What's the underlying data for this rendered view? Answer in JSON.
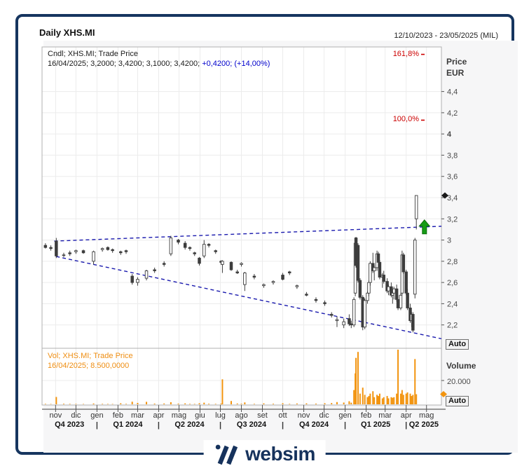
{
  "window": {
    "title": "Daily XHS.MI",
    "date_range": "12/10/2023 - 23/05/2025 (MIL)"
  },
  "price_panel": {
    "legend_line1": "Cndl; XHS.MI; Trade Price",
    "legend_line2_ohlc": "16/04/2025; 3,2000; 3,4200; 3,1000; 3,4200; ",
    "legend_line2_change": "+0,4200; (+14,00%)",
    "axis_title_line1": "Price",
    "axis_title_line2": "EUR",
    "auto_button": "Auto",
    "tick_labels": [
      "4,4",
      "4,2",
      "4",
      "3,8",
      "3,6",
      "3,4",
      "3,2",
      "3",
      "2,8",
      "2,6",
      "2,4",
      "2,2"
    ],
    "fib_levels": [
      {
        "label": "161,8%",
        "price": 4.75
      },
      {
        "label": "100,0%",
        "price": 4.13
      }
    ],
    "last_price_marker": 3.42
  },
  "volume_panel": {
    "legend_line1": "Vol; XHS.MI; Trade Price",
    "legend_line2": "16/04/2025; 8.500,0000",
    "axis_title": "Volume",
    "tick_label": "20.000",
    "tick_value": 20000,
    "auto_button": "Auto",
    "last_volume_marker": 8500
  },
  "x_axis": {
    "months": [
      {
        "label": "nov",
        "date": "2023-11-01"
      },
      {
        "label": "dic",
        "date": "2023-12-01"
      },
      {
        "label": "gen",
        "date": "2024-01-01"
      },
      {
        "label": "feb",
        "date": "2024-02-01"
      },
      {
        "label": "mar",
        "date": "2024-03-01"
      },
      {
        "label": "apr",
        "date": "2024-04-01"
      },
      {
        "label": "mag",
        "date": "2024-05-01"
      },
      {
        "label": "giu",
        "date": "2024-06-01"
      },
      {
        "label": "lug",
        "date": "2024-07-01"
      },
      {
        "label": "ago",
        "date": "2024-08-01"
      },
      {
        "label": "set",
        "date": "2024-09-01"
      },
      {
        "label": "ott",
        "date": "2024-10-01"
      },
      {
        "label": "nov",
        "date": "2024-11-01"
      },
      {
        "label": "dic",
        "date": "2024-12-01"
      },
      {
        "label": "gen",
        "date": "2025-01-01"
      },
      {
        "label": "feb",
        "date": "2025-02-01"
      },
      {
        "label": "mar",
        "date": "2025-03-01"
      },
      {
        "label": "apr",
        "date": "2025-04-01"
      },
      {
        "label": "mag",
        "date": "2025-05-01"
      }
    ],
    "quarters": [
      {
        "label": "Q4 2023",
        "start": "2023-10-12",
        "end": "2024-01-01"
      },
      {
        "label": "Q1 2024",
        "start": "2024-01-01",
        "end": "2024-04-01"
      },
      {
        "label": "Q2 2024",
        "start": "2024-04-01",
        "end": "2024-07-01"
      },
      {
        "label": "Q3 2024",
        "start": "2024-07-01",
        "end": "2024-10-01"
      },
      {
        "label": "Q4 2024",
        "start": "2024-10-01",
        "end": "2025-01-01"
      },
      {
        "label": "Q1 2025",
        "start": "2025-01-01",
        "end": "2025-04-01"
      },
      {
        "label": "Q2 2025",
        "start": "2025-04-01",
        "end": "2025-05-23"
      }
    ]
  },
  "chart_data": {
    "type": "candlestick",
    "x_domain": [
      "2023-10-12",
      "2025-05-23"
    ],
    "price_range": [
      1.98,
      4.82
    ],
    "volume_axis_max_shown": 20000,
    "grid": true,
    "columns": [
      "date",
      "open",
      "high",
      "low",
      "close",
      "volume"
    ],
    "candles": [
      [
        "2023-10-17",
        2.95,
        2.97,
        2.92,
        2.93,
        400
      ],
      [
        "2023-10-25",
        2.93,
        2.95,
        2.9,
        2.92,
        300
      ],
      [
        "2023-11-02",
        2.99,
        3.02,
        2.83,
        2.85,
        6200
      ],
      [
        "2023-11-13",
        2.86,
        2.88,
        2.84,
        2.86,
        500
      ],
      [
        "2023-11-22",
        2.88,
        2.9,
        2.85,
        2.87,
        400
      ],
      [
        "2023-12-01",
        2.89,
        2.91,
        2.87,
        2.9,
        350
      ],
      [
        "2023-12-12",
        2.9,
        2.91,
        2.87,
        2.88,
        300
      ],
      [
        "2023-12-27",
        2.8,
        2.9,
        2.77,
        2.89,
        700
      ],
      [
        "2024-01-09",
        2.91,
        2.93,
        2.89,
        2.92,
        400
      ],
      [
        "2024-01-17",
        2.93,
        2.94,
        2.9,
        2.91,
        350
      ],
      [
        "2024-01-24",
        2.91,
        2.92,
        2.88,
        2.9,
        300
      ],
      [
        "2024-02-05",
        2.89,
        2.9,
        2.86,
        2.88,
        900
      ],
      [
        "2024-02-13",
        2.9,
        2.91,
        2.87,
        2.89,
        400
      ],
      [
        "2024-02-22",
        2.66,
        2.68,
        2.58,
        2.6,
        2200
      ],
      [
        "2024-03-01",
        2.6,
        2.65,
        2.57,
        2.63,
        1200
      ],
      [
        "2024-03-14",
        2.64,
        2.72,
        2.62,
        2.71,
        2100
      ],
      [
        "2024-03-26",
        2.72,
        2.74,
        2.69,
        2.71,
        600
      ],
      [
        "2024-04-09",
        2.78,
        2.8,
        2.75,
        2.77,
        700
      ],
      [
        "2024-04-19",
        2.87,
        3.04,
        2.85,
        3.02,
        1800
      ],
      [
        "2024-04-30",
        3.0,
        3.01,
        2.96,
        2.98,
        600
      ],
      [
        "2024-05-10",
        2.97,
        2.99,
        2.91,
        2.93,
        800
      ],
      [
        "2024-05-17",
        2.93,
        2.94,
        2.9,
        2.92,
        400
      ],
      [
        "2024-05-24",
        2.88,
        2.89,
        2.85,
        2.87,
        350
      ],
      [
        "2024-05-31",
        2.83,
        2.84,
        2.76,
        2.78,
        900
      ],
      [
        "2024-06-07",
        2.85,
        3.0,
        2.83,
        2.96,
        1400
      ],
      [
        "2024-06-14",
        2.96,
        2.97,
        2.93,
        2.95,
        500
      ],
      [
        "2024-06-24",
        2.9,
        2.91,
        2.87,
        2.89,
        400
      ],
      [
        "2024-07-02",
        2.8,
        2.81,
        2.77,
        2.79,
        600
      ],
      [
        "2024-07-04",
        2.77,
        2.81,
        2.69,
        2.8,
        21000
      ],
      [
        "2024-07-17",
        2.79,
        2.8,
        2.71,
        2.72,
        2800
      ],
      [
        "2024-07-26",
        2.7,
        2.72,
        2.68,
        2.69,
        700
      ],
      [
        "2024-08-01",
        2.77,
        2.79,
        2.75,
        2.78,
        500
      ],
      [
        "2024-08-06",
        2.58,
        2.7,
        2.52,
        2.69,
        1600
      ],
      [
        "2024-08-20",
        2.66,
        2.68,
        2.63,
        2.65,
        400
      ],
      [
        "2024-09-03",
        2.57,
        2.59,
        2.55,
        2.58,
        800
      ],
      [
        "2024-09-17",
        2.6,
        2.62,
        2.58,
        2.61,
        500
      ],
      [
        "2024-10-01",
        2.67,
        2.69,
        2.62,
        2.63,
        900
      ],
      [
        "2024-10-11",
        2.7,
        2.71,
        2.67,
        2.69,
        400
      ],
      [
        "2024-10-22",
        2.56,
        2.58,
        2.54,
        2.57,
        700
      ],
      [
        "2024-11-05",
        2.49,
        2.51,
        2.47,
        2.48,
        800
      ],
      [
        "2024-11-19",
        2.44,
        2.46,
        2.41,
        2.43,
        600
      ],
      [
        "2024-12-02",
        2.41,
        2.43,
        2.38,
        2.4,
        900
      ],
      [
        "2024-12-12",
        2.3,
        2.32,
        2.27,
        2.29,
        1100
      ],
      [
        "2024-12-20",
        2.24,
        2.28,
        2.18,
        2.25,
        1900
      ],
      [
        "2024-12-30",
        2.2,
        2.26,
        2.17,
        2.23,
        1500
      ],
      [
        "2025-01-07",
        2.26,
        2.3,
        2.19,
        2.21,
        2600
      ],
      [
        "2025-01-10",
        2.21,
        2.24,
        2.17,
        2.2,
        1400
      ],
      [
        "2025-01-14",
        2.2,
        2.46,
        2.18,
        2.44,
        12000
      ],
      [
        "2025-01-16",
        2.5,
        3.0,
        2.47,
        2.97,
        26000
      ],
      [
        "2025-01-17",
        3.02,
        3.03,
        2.74,
        2.76,
        39000
      ],
      [
        "2025-01-20",
        2.95,
        2.97,
        2.6,
        2.62,
        44000
      ],
      [
        "2025-01-23",
        2.62,
        2.64,
        2.44,
        2.46,
        9000
      ],
      [
        "2025-01-27",
        2.46,
        2.48,
        2.15,
        2.18,
        14000
      ],
      [
        "2025-01-30",
        2.18,
        2.45,
        2.16,
        2.43,
        8000
      ],
      [
        "2025-02-03",
        2.43,
        2.52,
        2.4,
        2.5,
        6000
      ],
      [
        "2025-02-05",
        2.5,
        2.62,
        2.47,
        2.6,
        7000
      ],
      [
        "2025-02-07",
        2.6,
        2.8,
        2.57,
        2.78,
        9000
      ],
      [
        "2025-02-11",
        2.78,
        2.88,
        2.69,
        2.71,
        11000
      ],
      [
        "2025-02-13",
        2.71,
        2.76,
        2.62,
        2.74,
        6000
      ],
      [
        "2025-02-17",
        2.74,
        2.9,
        2.71,
        2.87,
        8000
      ],
      [
        "2025-02-19",
        2.87,
        2.89,
        2.77,
        2.79,
        7000
      ],
      [
        "2025-02-21",
        2.79,
        2.81,
        2.63,
        2.65,
        9000
      ],
      [
        "2025-02-25",
        2.65,
        2.69,
        2.55,
        2.67,
        5000
      ],
      [
        "2025-02-27",
        2.67,
        2.71,
        2.59,
        2.61,
        6000
      ],
      [
        "2025-03-04",
        2.61,
        2.64,
        2.5,
        2.52,
        7000
      ],
      [
        "2025-03-06",
        2.52,
        2.58,
        2.48,
        2.56,
        5000
      ],
      [
        "2025-03-10",
        2.56,
        2.6,
        2.46,
        2.48,
        6000
      ],
      [
        "2025-03-12",
        2.48,
        2.52,
        2.4,
        2.5,
        5500
      ],
      [
        "2025-03-14",
        2.5,
        2.56,
        2.44,
        2.54,
        6000
      ],
      [
        "2025-03-18",
        2.54,
        2.58,
        2.42,
        2.44,
        9000
      ],
      [
        "2025-03-20",
        2.44,
        2.48,
        2.34,
        2.36,
        46000
      ],
      [
        "2025-03-24",
        2.36,
        2.5,
        2.34,
        2.48,
        9000
      ],
      [
        "2025-03-26",
        2.5,
        2.9,
        2.48,
        2.86,
        12000
      ],
      [
        "2025-03-28",
        2.86,
        2.88,
        2.68,
        2.7,
        8000
      ],
      [
        "2025-04-01",
        2.7,
        2.72,
        2.48,
        2.5,
        9000
      ],
      [
        "2025-04-03",
        2.5,
        2.54,
        2.34,
        2.36,
        10000
      ],
      [
        "2025-04-07",
        2.36,
        2.4,
        2.22,
        2.24,
        9000
      ],
      [
        "2025-04-09",
        2.24,
        2.32,
        2.18,
        2.3,
        7000
      ],
      [
        "2025-04-11",
        2.3,
        2.32,
        2.13,
        2.15,
        8000
      ],
      [
        "2025-04-14",
        2.49,
        3.02,
        2.45,
        3.0,
        38000
      ],
      [
        "2025-04-16",
        3.2,
        3.42,
        3.1,
        3.42,
        8500
      ]
    ],
    "trendlines": [
      {
        "name": "upper-wedge",
        "p1": {
          "date": "2023-10-30",
          "price": 2.99
        },
        "p2": {
          "date": "2025-05-23",
          "price": 3.13
        }
      },
      {
        "name": "lower-wedge",
        "p1": {
          "date": "2023-11-02",
          "price": 2.845
        },
        "p2": {
          "date": "2025-05-23",
          "price": 2.07
        }
      }
    ],
    "markers": [
      {
        "type": "up-arrow",
        "date": "2025-04-28",
        "price": 3.19
      }
    ]
  },
  "footer": {
    "brand": "websim"
  },
  "colors": {
    "card_border": "#16355f",
    "trendline_blue": "#1a1aae",
    "fib_red": "#cc0000",
    "candle_ink": "#3d3d3d",
    "volume_orange": "#f2940f",
    "arrow_green": "#169c16",
    "change_blue": "#0000cc",
    "grid": "#ececec",
    "panel_border": "#b0b0b0"
  }
}
